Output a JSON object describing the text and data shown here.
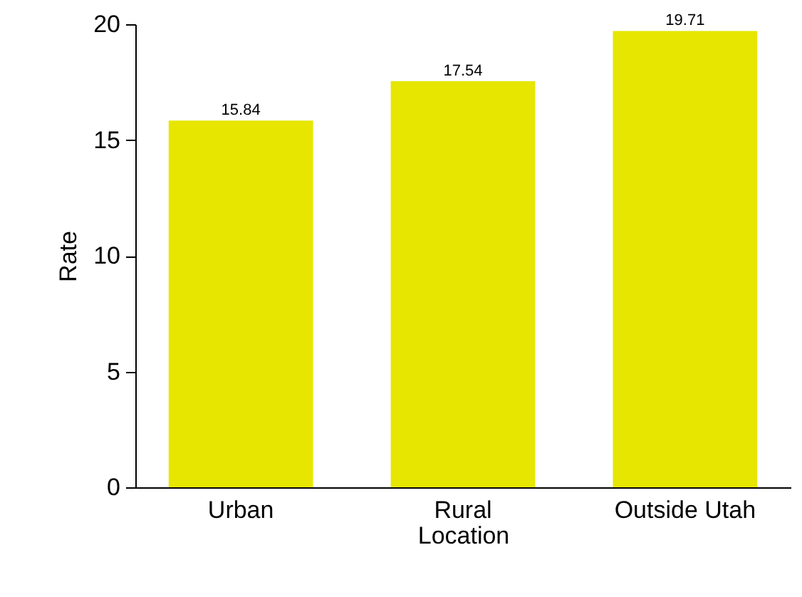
{
  "chart_data": {
    "type": "bar",
    "xlabel": "Location",
    "ylabel": "Rate",
    "categories": [
      "Urban",
      "Rural",
      "Outside Utah"
    ],
    "values": [
      15.84,
      17.54,
      19.71
    ],
    "color": "#e6e600",
    "ylim": [
      0,
      20
    ],
    "yticks": [
      0,
      5,
      10,
      15,
      20
    ],
    "grid": false,
    "data_labels": true
  }
}
